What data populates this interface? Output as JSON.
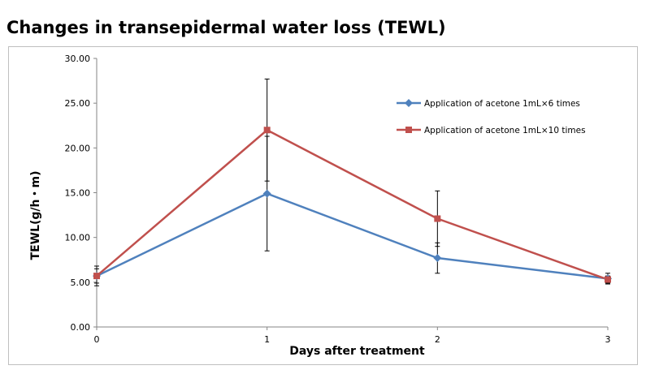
{
  "chart_data": {
    "type": "line",
    "title": "Changes in transepidermal water loss (TEWL)",
    "xlabel": "Days after treatment",
    "ylabel": "TEWL(g/h・m)",
    "x": [
      0,
      1,
      2,
      3
    ],
    "x_tick_labels": [
      "0",
      "1",
      "2",
      "3"
    ],
    "y_tick_labels": [
      "0.00",
      "5.00",
      "10.00",
      "15.00",
      "20.00",
      "25.00",
      "30.00"
    ],
    "ylim": [
      0,
      30
    ],
    "grid": false,
    "legend_position": "top-right",
    "series": [
      {
        "name": "Application of acetone 1mL×6 times",
        "marker": "diamond",
        "color": "#4f81bd",
        "values": [
          5.7,
          14.9,
          7.7,
          5.4
        ],
        "error": [
          1.1,
          6.4,
          1.7,
          0.6
        ]
      },
      {
        "name": "Application of acetone 1mL×10 times",
        "marker": "square",
        "color": "#c0504d",
        "values": [
          5.7,
          22.0,
          12.1,
          5.3
        ],
        "error": [
          0.8,
          5.7,
          3.1,
          0.4
        ]
      }
    ]
  }
}
